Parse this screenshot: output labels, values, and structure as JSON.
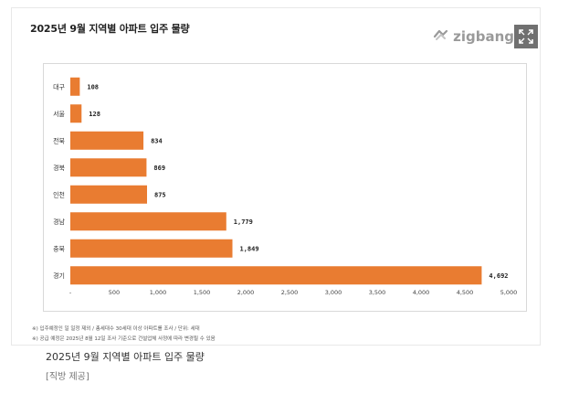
{
  "header": {
    "title": "2025년 9월 지역별 아파트 입주 물량",
    "brand": "zigbang",
    "brand_icon": "zigbang-logo-icon",
    "expand_icon": "expand-icon"
  },
  "chart_data": {
    "type": "bar",
    "orientation": "horizontal",
    "title": "2025년 9월 지역별 아파트 입주 물량",
    "categories": [
      "대구",
      "서울",
      "전북",
      "경북",
      "인천",
      "경남",
      "충북",
      "경기"
    ],
    "values": [
      108,
      128,
      834,
      869,
      875,
      1779,
      1849,
      4692
    ],
    "value_labels": [
      "108",
      "128",
      "834",
      "869",
      "875",
      "1,779",
      "1,849",
      "4,692"
    ],
    "xlim": [
      0,
      5000
    ],
    "x_ticks": [
      0,
      500,
      1000,
      1500,
      2000,
      2500,
      3000,
      3500,
      4000,
      4500,
      5000
    ],
    "x_tick_labels": [
      "-",
      "500",
      "1,000",
      "1,500",
      "2,000",
      "2,500",
      "3,000",
      "3,500",
      "4,000",
      "4,500",
      "5,000"
    ],
    "bar_color": "#e97c31",
    "grid": false,
    "legend": "none"
  },
  "notes": {
    "line1": "※) 입주예정인 일 일정 제외 / 총세대수 30세대 이상 아파트를 조사 / 단위: 세대",
    "line2": "※) 공급 예정은 2025년 8월 12일 조사 기준으로 건설업체 사정에 따라 변경될 수 있음"
  },
  "caption": "2025년 9월 지역별 아파트 입주 물량",
  "credit": "[직방 제공]",
  "colors": {
    "bar": "#e97c31",
    "brand_gray": "#9a9a9a",
    "expand_bg": "#707070"
  }
}
